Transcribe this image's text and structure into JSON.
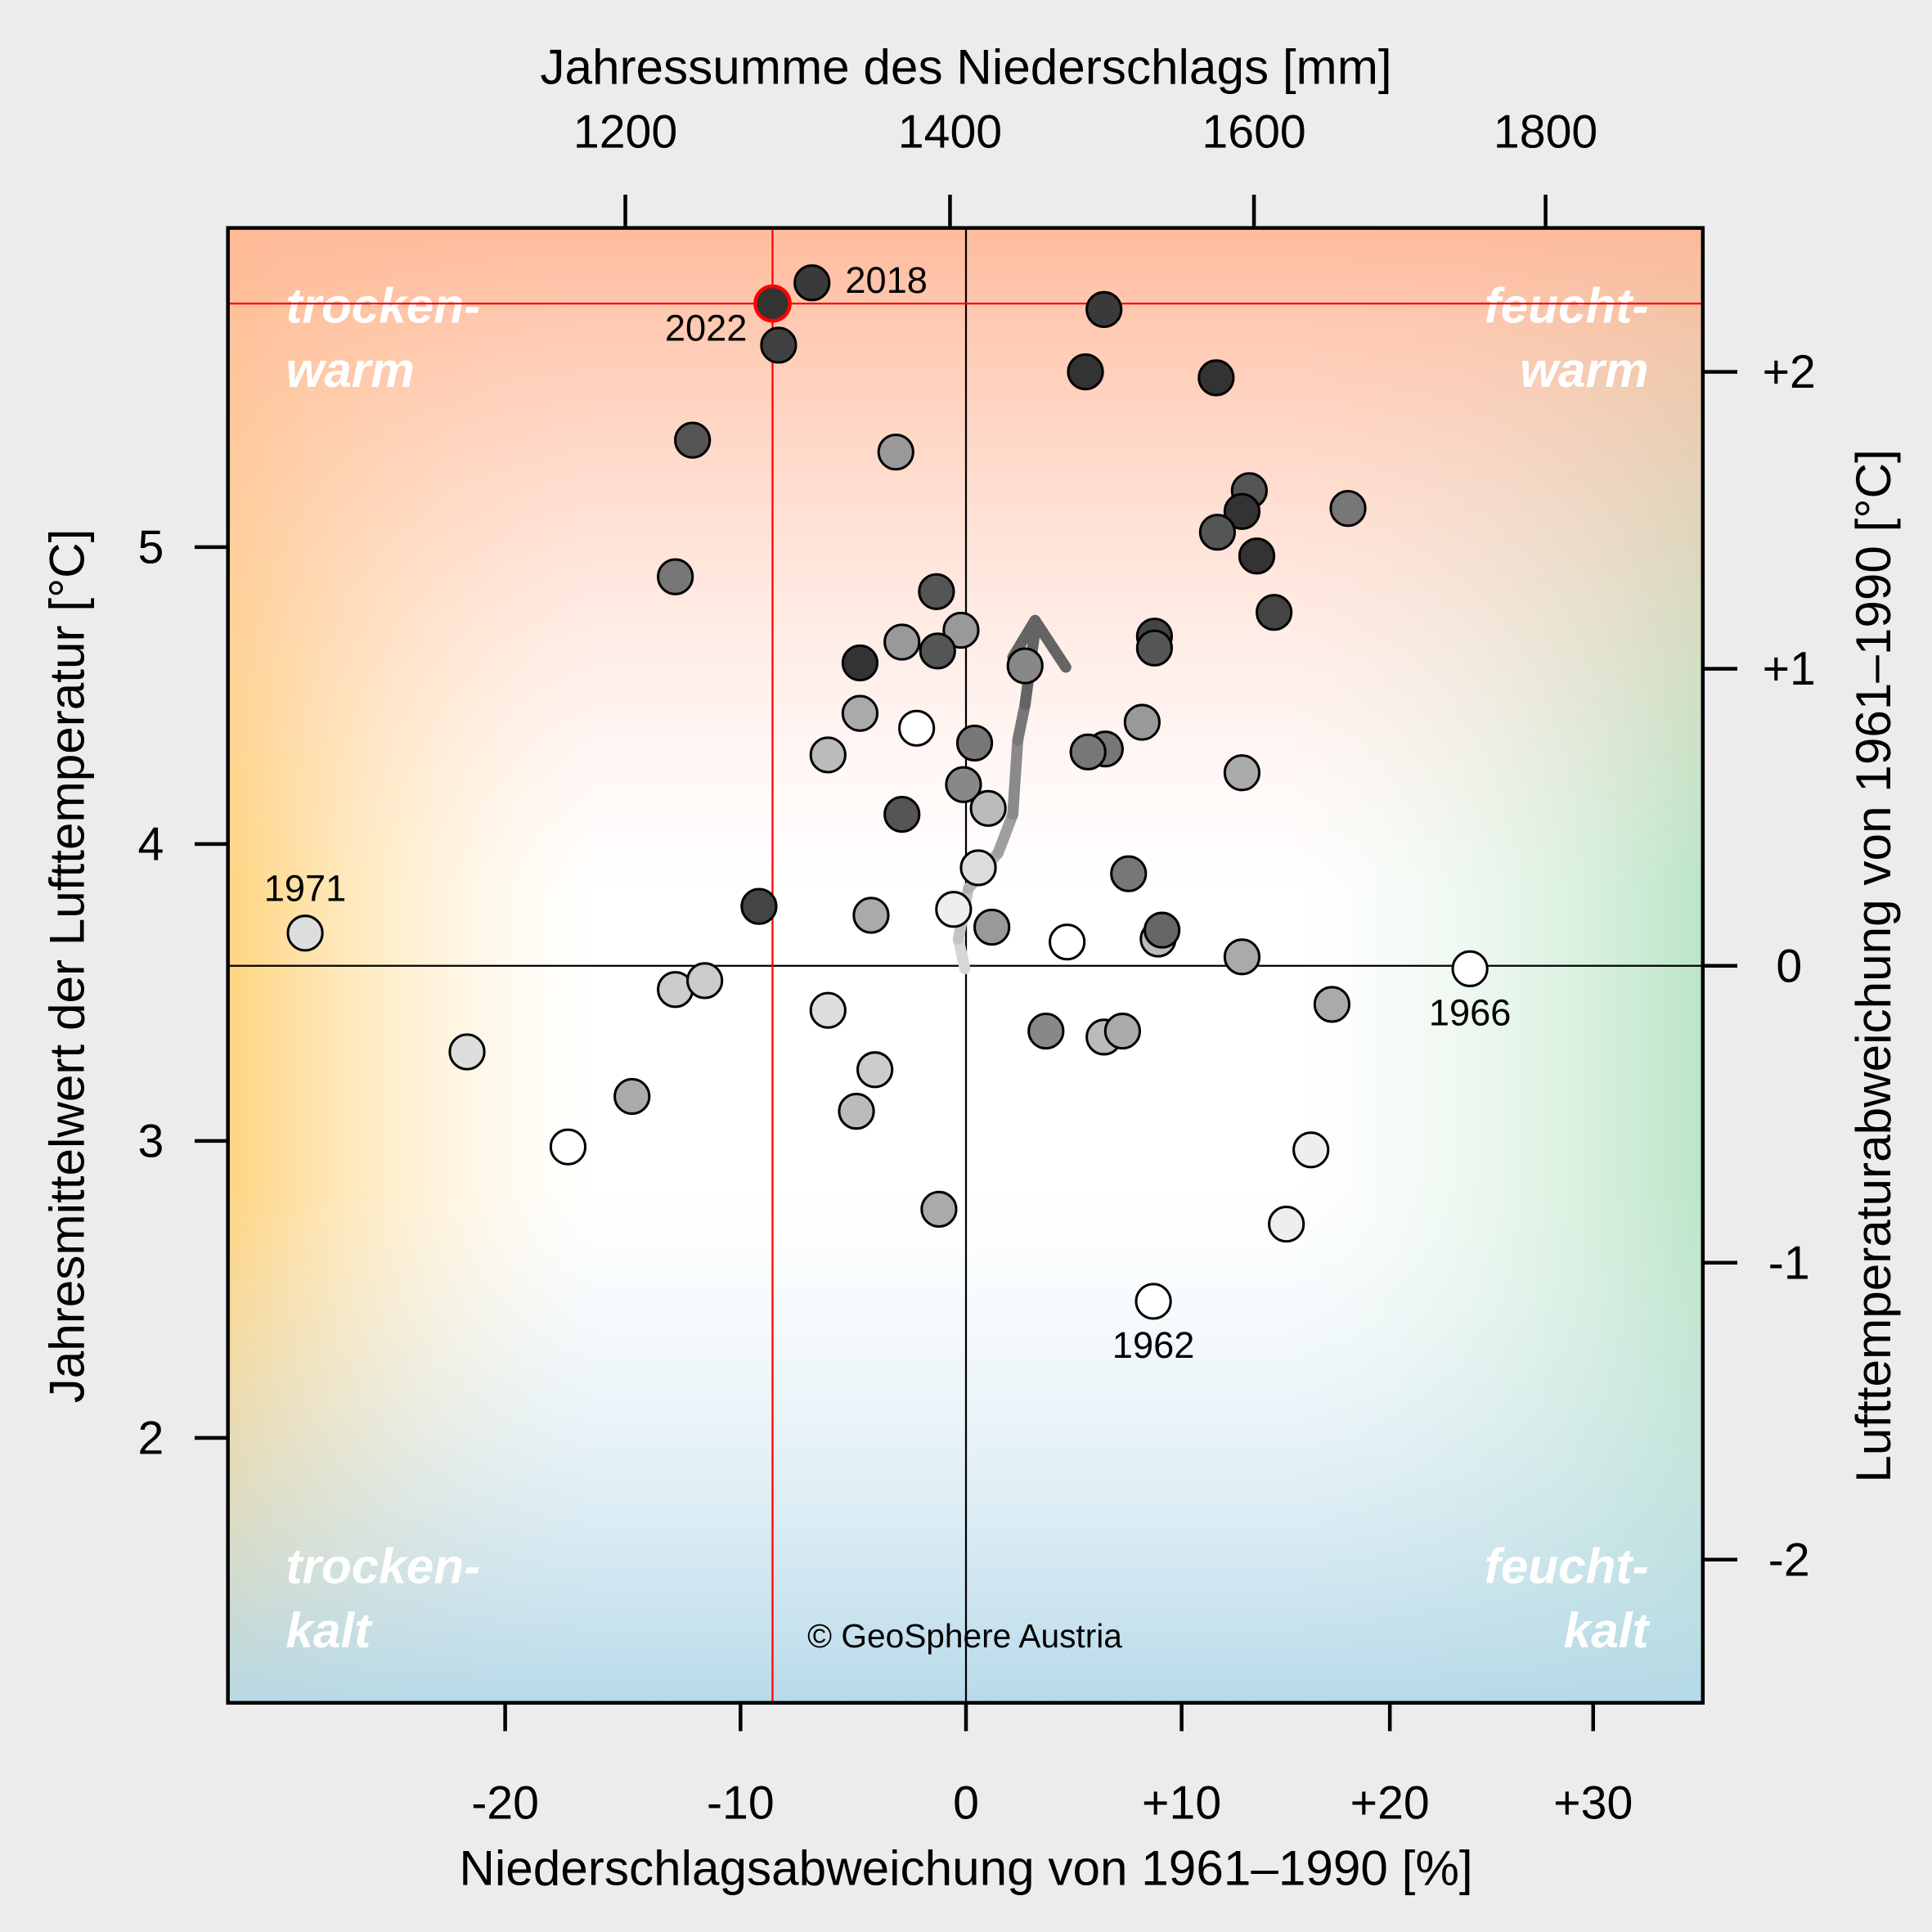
{
  "chart_data": {
    "type": "scatter",
    "title": "",
    "xlabel_bottom": "Niederschlagsabweichung von 1961–1990 [%]",
    "xlabel_top": "Jahressumme des Niederschlags [mm]",
    "ylabel_left": "Jahresmittelwert der Lufttemperatur [°C]",
    "ylabel_right": "Lufttemperaturabweichung von 1961–1990 [°C]",
    "reference_precip_mm": 1410,
    "reference_temp_c": 3.59,
    "x_ticks": [
      {
        "v": -20,
        "t": "-20"
      },
      {
        "v": -10,
        "t": "-10"
      },
      {
        "v": 0,
        "t": "0"
      },
      {
        "v": 10,
        "t": "+10"
      },
      {
        "v": 20,
        "t": "+20"
      },
      {
        "v": 30,
        "t": "+30"
      }
    ],
    "x_top_ticks": [
      {
        "v": 1200,
        "t": "1200"
      },
      {
        "v": 1400,
        "t": "1400"
      },
      {
        "v": 1600,
        "t": "1600"
      },
      {
        "v": 1800,
        "t": "1800"
      }
    ],
    "y_ticks": [
      {
        "v": 2,
        "t": "2"
      },
      {
        "v": 3,
        "t": "3"
      },
      {
        "v": 4,
        "t": "4"
      },
      {
        "v": 5,
        "t": "5"
      }
    ],
    "y_right_ticks": [
      {
        "v": -2,
        "t": "-2"
      },
      {
        "v": -1,
        "t": "-1"
      },
      {
        "v": 0,
        "t": "0"
      },
      {
        "v": 1,
        "t": "+1"
      },
      {
        "v": 2,
        "t": "+2"
      }
    ],
    "xlim": [
      -30.9,
      34.7
    ],
    "ylim": [
      1.33,
      6.08
    ],
    "quadrants": {
      "top_left": [
        "trocken-",
        "warm"
      ],
      "top_right": [
        "feucht-",
        "warm"
      ],
      "bottom_left": [
        "trocken-",
        "kalt"
      ],
      "bottom_right": [
        "feucht-",
        "kalt"
      ]
    },
    "highlight": {
      "year": "2022",
      "x": -8.58,
      "y": 5.82,
      "color": "#ff0000"
    },
    "annotations": [
      {
        "text": "2018",
        "x": -6.83,
        "y": 5.89
      },
      {
        "text": "1971",
        "x": -28.5,
        "y": 3.7
      },
      {
        "text": "1966",
        "x": 23.94,
        "y": 3.58
      },
      {
        "text": "1962",
        "x": 8.69,
        "y": 2.46
      }
    ],
    "points": [
      [
        -8.58,
        5.82,
        "#333333"
      ],
      [
        -6.83,
        5.89,
        "#3a3a3a"
      ],
      [
        -8.31,
        5.68,
        "#404040"
      ],
      [
        6.4,
        5.8,
        "#3a3a3a"
      ],
      [
        5.54,
        5.59,
        "#333333"
      ],
      [
        11.66,
        5.57,
        "#333333"
      ],
      [
        -12.04,
        5.36,
        "#555555"
      ],
      [
        -3.11,
        5.32,
        "#999999"
      ],
      [
        -12.77,
        4.9,
        "#777777"
      ],
      [
        13.25,
        5.19,
        "#555555"
      ],
      [
        12.9,
        5.12,
        "#333333"
      ],
      [
        11.72,
        5.05,
        "#555555"
      ],
      [
        17.99,
        5.13,
        "#777777"
      ],
      [
        13.61,
        4.97,
        "#333333"
      ],
      [
        14.44,
        4.78,
        "#444444"
      ],
      [
        -1.31,
        4.85,
        "#555555"
      ],
      [
        -0.22,
        4.72,
        "#999999"
      ],
      [
        -2.84,
        4.68,
        "#999999"
      ],
      [
        -1.26,
        4.65,
        "#555555"
      ],
      [
        -4.7,
        4.61,
        "#333333"
      ],
      [
        2.74,
        4.6,
        "#888888"
      ],
      [
        8.74,
        4.7,
        "#444444"
      ],
      [
        8.74,
        4.66,
        "#555555"
      ],
      [
        -4.7,
        4.44,
        "#aaaaaa"
      ],
      [
        -2.19,
        4.39,
        "#ffffff"
      ],
      [
        -6.12,
        4.3,
        "#bbbbbb"
      ],
      [
        0.4,
        4.34,
        "#777777"
      ],
      [
        6.46,
        4.32,
        "#777777"
      ],
      [
        5.66,
        4.31,
        "#777777"
      ],
      [
        8.17,
        4.41,
        "#999999"
      ],
      [
        -0.11,
        4.2,
        "#888888"
      ],
      [
        1.03,
        4.12,
        "#bbbbbb"
      ],
      [
        -2.84,
        4.1,
        "#555555"
      ],
      [
        12.9,
        4.24,
        "#aaaaaa"
      ],
      [
        0.57,
        3.92,
        "#dddddd"
      ],
      [
        7.54,
        3.9,
        "#777777"
      ],
      [
        -9.18,
        3.79,
        "#444444"
      ],
      [
        -4.21,
        3.76,
        "#aaaaaa"
      ],
      [
        -0.55,
        3.78,
        "#eeeeee"
      ],
      [
        1.2,
        3.72,
        "#999999"
      ],
      [
        4.69,
        3.67,
        "#ffffff"
      ],
      [
        8.91,
        3.68,
        "#bbbbbb"
      ],
      [
        9.09,
        3.71,
        "#666666"
      ],
      [
        12.9,
        3.62,
        "#aaaaaa"
      ],
      [
        -28.5,
        3.7,
        "#dddddd"
      ],
      [
        23.94,
        3.58,
        "#ffffff"
      ],
      [
        -12.77,
        3.51,
        "#cccccc"
      ],
      [
        -11.52,
        3.54,
        "#cccccc"
      ],
      [
        -6.12,
        3.44,
        "#dddddd"
      ],
      [
        17.22,
        3.46,
        "#aaaaaa"
      ],
      [
        -21.62,
        3.3,
        "#dddddd"
      ],
      [
        3.71,
        3.37,
        "#888888"
      ],
      [
        6.4,
        3.35,
        "#bbbbbb"
      ],
      [
        7.26,
        3.37,
        "#aaaaaa"
      ],
      [
        -4.04,
        3.24,
        "#cccccc"
      ],
      [
        -14.61,
        3.15,
        "#aaaaaa"
      ],
      [
        -4.86,
        3.1,
        "#bbbbbb"
      ],
      [
        -17.33,
        2.98,
        "#ffffff"
      ],
      [
        16.21,
        2.97,
        "#eeeeee"
      ],
      [
        -1.2,
        2.77,
        "#aaaaaa"
      ],
      [
        15.03,
        2.72,
        "#eeeeee"
      ],
      [
        8.69,
        2.46,
        "#ffffff"
      ]
    ],
    "trend": [
      [
        -0.05,
        3.58
      ],
      [
        -0.34,
        3.68
      ],
      [
        0.11,
        3.85
      ],
      [
        1.49,
        3.97
      ],
      [
        2.17,
        4.1
      ],
      [
        2.4,
        4.35
      ],
      [
        2.74,
        4.47
      ],
      [
        3.2,
        4.72
      ]
    ],
    "copyright": "© GeoSphere Austria"
  }
}
